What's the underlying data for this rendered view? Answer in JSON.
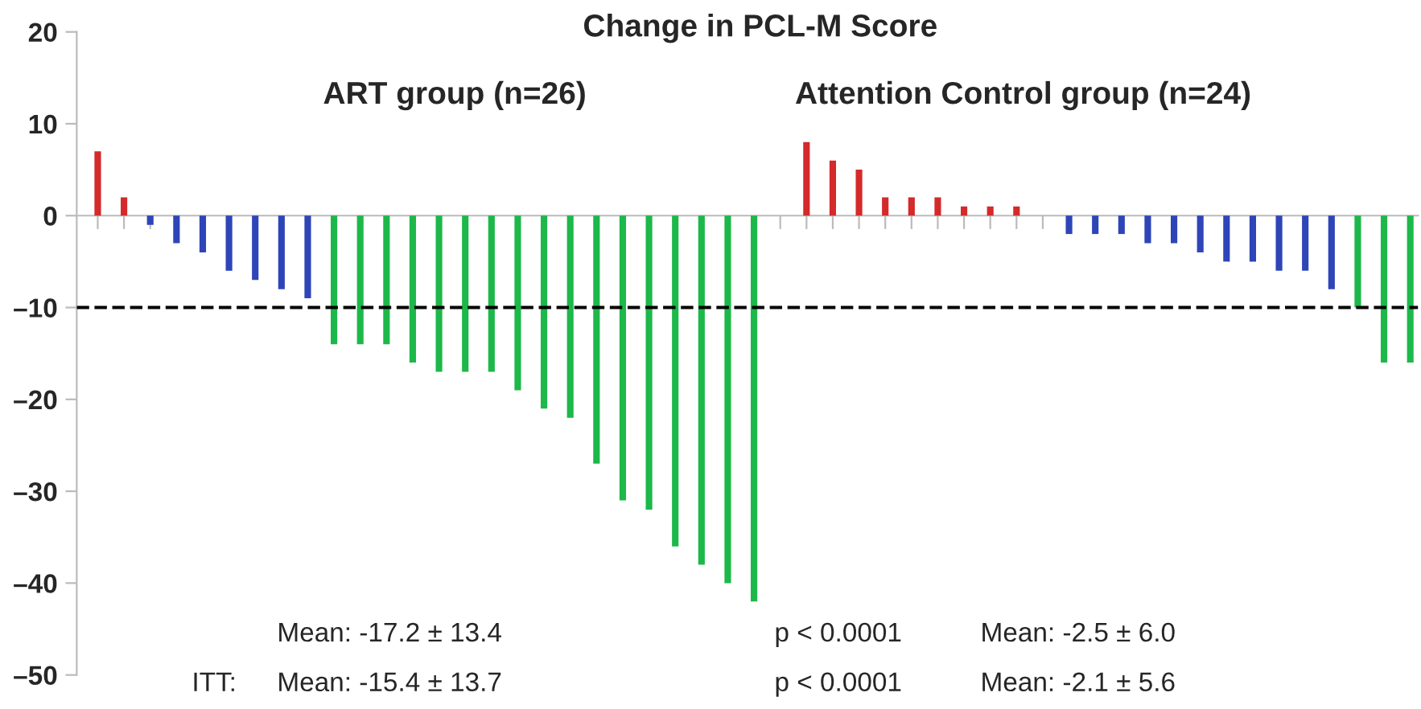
{
  "chart_data": {
    "type": "bar",
    "title": "Change in PCL-M Score",
    "categories": [
      null,
      null,
      null,
      null,
      null,
      null,
      null,
      null,
      null,
      null,
      null,
      null,
      null,
      null,
      null,
      null,
      null,
      null,
      null,
      null,
      null,
      null,
      null,
      null,
      null,
      null,
      null,
      null,
      null,
      null,
      null,
      null,
      null,
      null,
      null,
      null,
      null,
      null,
      null,
      null,
      null,
      null,
      null,
      null,
      null,
      null,
      null,
      null,
      null,
      null,
      null
    ],
    "values": [
      7,
      2,
      -1,
      -3,
      -4,
      -6,
      -7,
      -8,
      -9,
      -14,
      -14,
      -14,
      -16,
      -17,
      -17,
      -17,
      -19,
      -21,
      -22,
      -27,
      -31,
      -32,
      -36,
      -38,
      -40,
      -42,
      null,
      8,
      6,
      5,
      2,
      2,
      2,
      1,
      1,
      1,
      0,
      -2,
      -2,
      -2,
      -3,
      -3,
      -4,
      -5,
      -5,
      -6,
      -6,
      -8,
      -10,
      -16,
      -16
    ],
    "colors": [
      "#d42a2a",
      "#d42a2a",
      "#2e45b8",
      "#2e45b8",
      "#2e45b8",
      "#2e45b8",
      "#2e45b8",
      "#2e45b8",
      "#2e45b8",
      "#1db84a",
      "#1db84a",
      "#1db84a",
      "#1db84a",
      "#1db84a",
      "#1db84a",
      "#1db84a",
      "#1db84a",
      "#1db84a",
      "#1db84a",
      "#1db84a",
      "#1db84a",
      "#1db84a",
      "#1db84a",
      "#1db84a",
      "#1db84a",
      "#1db84a",
      "#1db84a",
      "#d42a2a",
      "#d42a2a",
      "#d42a2a",
      "#d42a2a",
      "#d42a2a",
      "#d42a2a",
      "#d42a2a",
      "#d42a2a",
      "#d42a2a",
      "#d42a2a",
      "#2e45b8",
      "#2e45b8",
      "#2e45b8",
      "#2e45b8",
      "#2e45b8",
      "#2e45b8",
      "#2e45b8",
      "#2e45b8",
      "#2e45b8",
      "#2e45b8",
      "#2e45b8",
      "#1db84a",
      "#1db84a",
      "#1db84a"
    ],
    "ylim": [
      -50,
      20
    ],
    "yticks": [
      {
        "value": -50,
        "label": "–50"
      },
      {
        "value": -40,
        "label": "–40"
      },
      {
        "value": -30,
        "label": "–30"
      },
      {
        "value": -20,
        "label": "–20"
      },
      {
        "value": -10,
        "label": "–10"
      },
      0,
      10,
      20
    ],
    "ref_lines": [
      {
        "axis": "y",
        "value": -10,
        "color": "#000000",
        "line_style": "dashed"
      }
    ],
    "grid": false,
    "annotations": [
      "ART group (n=26)",
      "Attention Control group (n=24)",
      "Mean: -17.2 ± 13.4",
      "p < 0.0001",
      "Mean: -2.5 ± 6.0",
      "ITT:",
      "Mean: -15.4 ± 13.7",
      "p < 0.0001",
      "Mean: -2.1 ± 5.6"
    ]
  }
}
